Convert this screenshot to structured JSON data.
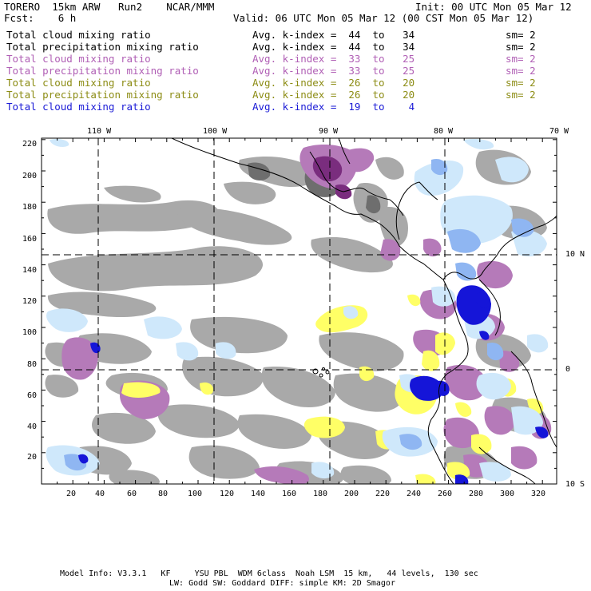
{
  "header": {
    "title": "TORERO  15km ARW   Run2    NCAR/MMM",
    "init": "Init: 00 UTC Mon 05 Mar 12",
    "fcst": "Fcst:    6 h",
    "valid": "Valid: 06 UTC Mon 05 Mar 12 (00 CST Mon 05 Mar 12)"
  },
  "legend": [
    {
      "field": "Total cloud mixing ratio",
      "kindex": "Avg. k-index =  44  to   34",
      "sm": "sm= 2",
      "color": "#000000"
    },
    {
      "field": "Total precipitation mixing ratio",
      "kindex": "Avg. k-index =  44  to   34",
      "sm": "sm= 2",
      "color": "#000000"
    },
    {
      "field": "Total cloud mixing ratio",
      "kindex": "Avg. k-index =  33  to   25",
      "sm": "sm= 2",
      "color": "#b05fb5"
    },
    {
      "field": "Total precipitation mixing ratio",
      "kindex": "Avg. k-index =  33  to   25",
      "sm": "sm= 2",
      "color": "#b05fb5"
    },
    {
      "field": "Total cloud mixing ratio",
      "kindex": "Avg. k-index =  26  to   20",
      "sm": "sm= 2",
      "color": "#8c8c14"
    },
    {
      "field": "Total precipitation mixing ratio",
      "kindex": "Avg. k-index =  26  to   20",
      "sm": "sm= 2",
      "color": "#8c8c14"
    },
    {
      "field": "Total cloud mixing ratio",
      "kindex": "Avg. k-index =  19  to    4",
      "sm": "",
      "color": "#1a1ad6"
    }
  ],
  "lon_labels": [
    "110 W",
    "100 W",
    "90 W",
    "80 W",
    "70 W"
  ],
  "lat_labels": [
    "10 N",
    "0",
    "10 S"
  ],
  "y_ticks": [
    "220",
    "200",
    "180",
    "160",
    "140",
    "120",
    "100",
    "80",
    "60",
    "40",
    "20"
  ],
  "x_ticks": [
    "20",
    "40",
    "60",
    "80",
    "100",
    "120",
    "140",
    "160",
    "180",
    "200",
    "220",
    "240",
    "260",
    "280",
    "300",
    "320"
  ],
  "footer": {
    "line1": "Model Info: V3.3.1   KF     YSU PBL  WDM 6class  Noah LSM  15 km,   44 levels,  130 sec",
    "line2": "LW: Godd SW: Goddard DIFF: simple KM: 2D Smagor"
  },
  "colors": {
    "gray_cloud": "#a9a9a9",
    "dark_gray": "#6e6e6e",
    "purple": "#b57ab9",
    "dark_purple": "#7a2d7e",
    "yellow": "#ffff66",
    "light_blue": "#cfe8fb",
    "mid_blue": "#8fb6f2",
    "deep_blue": "#1515d8"
  }
}
